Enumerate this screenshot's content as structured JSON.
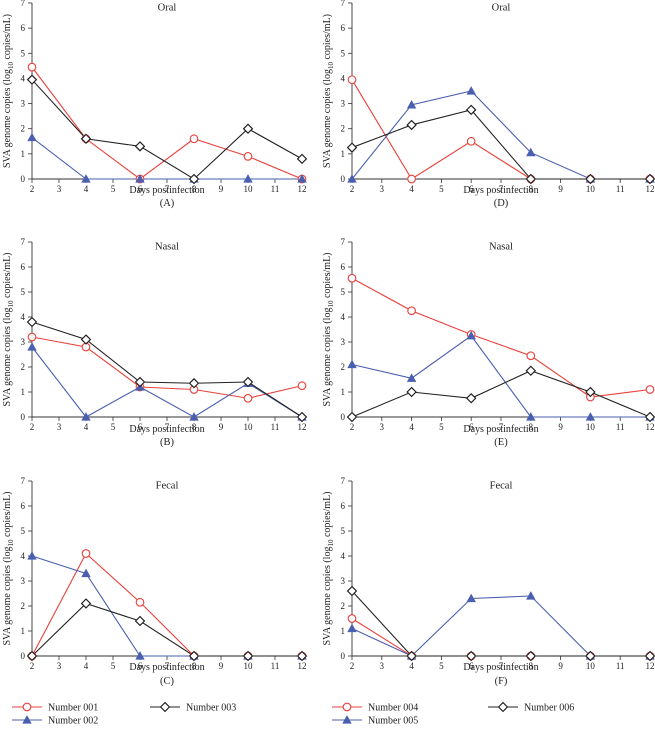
{
  "panels": [
    {
      "title": "Oral",
      "letter": "(A)",
      "xlabel": "Days postinfection",
      "ylabel_prefix": "SVA genome copies (log",
      "ylabel_sub": "10",
      "ylabel_suffix": " copies/mL)"
    },
    {
      "title": "Oral",
      "letter": "(D)",
      "xlabel": "Days postinfection",
      "ylabel_prefix": "SVA genome copies (log",
      "ylabel_sub": "10",
      "ylabel_suffix": " copies/mL)"
    },
    {
      "title": "Nasal",
      "letter": "(B)",
      "xlabel": "Days postinfection",
      "ylabel_prefix": "SVA genome copies (log",
      "ylabel_sub": "10",
      "ylabel_suffix": " copies/mL)"
    },
    {
      "title": "Nasal",
      "letter": "(E)",
      "xlabel": "Days postinfection",
      "ylabel_prefix": "SVA genome copies (log",
      "ylabel_sub": "10",
      "ylabel_suffix": " copies/mL)"
    },
    {
      "title": "Fecal",
      "letter": "(C)",
      "xlabel": "Days postinfection",
      "ylabel_prefix": "SVA genome copies (log",
      "ylabel_sub": "10",
      "ylabel_suffix": " copies/mL)"
    },
    {
      "title": "Fecal",
      "letter": "(F)",
      "xlabel": "Days postinfection",
      "ylabel_prefix": "SVA genome copies (log",
      "ylabel_sub": "10",
      "ylabel_suffix": " copies/mL)"
    }
  ],
  "legends": [
    {
      "items": [
        {
          "label": "Number 001"
        },
        {
          "label": "Number 003"
        },
        {
          "label": "Number 002"
        }
      ]
    },
    {
      "items": [
        {
          "label": "Number 004"
        },
        {
          "label": "Number 006"
        },
        {
          "label": "Number 005"
        }
      ]
    }
  ],
  "colors": {
    "red": "#e8413a",
    "blue": "#4a5fb0",
    "black": "#222222"
  },
  "chart_data": [
    {
      "type": "line",
      "title": "Oral",
      "panel": "(A)",
      "xlabel": "Days postinfection",
      "ylabel": "SVA genome copies (log10 copies/mL)",
      "x": [
        2,
        4,
        6,
        8,
        10,
        12
      ],
      "xlim": [
        2,
        12
      ],
      "ylim": [
        0,
        7
      ],
      "xticks": [
        2,
        3,
        4,
        5,
        6,
        7,
        8,
        9,
        10,
        11,
        12
      ],
      "yticks": [
        0,
        1,
        2,
        3,
        4,
        5,
        6,
        7
      ],
      "series": [
        {
          "name": "Number 001",
          "color": "red",
          "marker": "circle",
          "values": [
            4.45,
            1.6,
            0.0,
            1.6,
            0.9,
            0.0
          ]
        },
        {
          "name": "Number 002",
          "color": "blue",
          "marker": "triangle",
          "values": [
            1.65,
            0.0,
            0.0,
            0.0,
            0.0,
            0.0
          ]
        },
        {
          "name": "Number 003",
          "color": "black",
          "marker": "diamond",
          "values": [
            3.95,
            1.6,
            1.3,
            0.0,
            2.0,
            0.8
          ]
        }
      ]
    },
    {
      "type": "line",
      "title": "Oral",
      "panel": "(D)",
      "xlabel": "Days postinfection",
      "ylabel": "SVA genome copies (log10 copies/mL)",
      "x": [
        2,
        4,
        6,
        8,
        10,
        12
      ],
      "xlim": [
        2,
        12
      ],
      "ylim": [
        0,
        7
      ],
      "xticks": [
        2,
        3,
        4,
        5,
        6,
        7,
        8,
        9,
        10,
        11,
        12
      ],
      "yticks": [
        0,
        1,
        2,
        3,
        4,
        5,
        6,
        7
      ],
      "series": [
        {
          "name": "Number 004",
          "color": "red",
          "marker": "circle",
          "values": [
            3.95,
            0.0,
            1.5,
            0.0,
            0.0,
            0.0
          ]
        },
        {
          "name": "Number 005",
          "color": "blue",
          "marker": "triangle",
          "values": [
            0.0,
            2.95,
            3.5,
            1.05,
            0.0,
            0.0
          ]
        },
        {
          "name": "Number 006",
          "color": "black",
          "marker": "diamond",
          "values": [
            1.25,
            2.15,
            2.75,
            0.0,
            0.0,
            0.0
          ]
        }
      ]
    },
    {
      "type": "line",
      "title": "Nasal",
      "panel": "(B)",
      "xlabel": "Days postinfection",
      "ylabel": "SVA genome copies (log10 copies/mL)",
      "x": [
        2,
        4,
        6,
        8,
        10,
        12
      ],
      "xlim": [
        2,
        12
      ],
      "ylim": [
        0,
        7
      ],
      "xticks": [
        2,
        3,
        4,
        5,
        6,
        7,
        8,
        9,
        10,
        11,
        12
      ],
      "yticks": [
        0,
        1,
        2,
        3,
        4,
        5,
        6,
        7
      ],
      "series": [
        {
          "name": "Number 001",
          "color": "red",
          "marker": "circle",
          "values": [
            3.2,
            2.8,
            1.2,
            1.1,
            0.75,
            1.25
          ]
        },
        {
          "name": "Number 002",
          "color": "blue",
          "marker": "triangle",
          "values": [
            2.8,
            0.0,
            1.2,
            0.0,
            1.35,
            0.0
          ]
        },
        {
          "name": "Number 003",
          "color": "black",
          "marker": "diamond",
          "values": [
            3.8,
            3.1,
            1.4,
            1.35,
            1.4,
            0.0
          ]
        }
      ]
    },
    {
      "type": "line",
      "title": "Nasal",
      "panel": "(E)",
      "xlabel": "Days postinfection",
      "ylabel": "SVA genome copies (log10 copies/mL)",
      "x": [
        2,
        4,
        6,
        8,
        10,
        12
      ],
      "xlim": [
        2,
        12
      ],
      "ylim": [
        0,
        7
      ],
      "xticks": [
        2,
        3,
        4,
        5,
        6,
        7,
        8,
        9,
        10,
        11,
        12
      ],
      "yticks": [
        0,
        1,
        2,
        3,
        4,
        5,
        6,
        7
      ],
      "series": [
        {
          "name": "Number 004",
          "color": "red",
          "marker": "circle",
          "values": [
            5.55,
            4.25,
            3.3,
            2.45,
            0.8,
            1.1
          ]
        },
        {
          "name": "Number 005",
          "color": "blue",
          "marker": "triangle",
          "values": [
            2.1,
            1.55,
            3.25,
            0.0,
            0.0,
            0.0
          ]
        },
        {
          "name": "Number 006",
          "color": "black",
          "marker": "diamond",
          "values": [
            0.0,
            1.0,
            0.75,
            1.85,
            1.0,
            0.0
          ]
        }
      ]
    },
    {
      "type": "line",
      "title": "Fecal",
      "panel": "(C)",
      "xlabel": "Days postinfection",
      "ylabel": "SVA genome copies (log10 copies/mL)",
      "x": [
        2,
        4,
        6,
        8,
        10,
        12
      ],
      "xlim": [
        2,
        12
      ],
      "ylim": [
        0,
        7
      ],
      "xticks": [
        2,
        3,
        4,
        5,
        6,
        7,
        8,
        9,
        10,
        11,
        12
      ],
      "yticks": [
        0,
        1,
        2,
        3,
        4,
        5,
        6,
        7
      ],
      "series": [
        {
          "name": "Number 001",
          "color": "red",
          "marker": "circle",
          "values": [
            0.0,
            4.1,
            2.15,
            0.0,
            0.0,
            0.0
          ]
        },
        {
          "name": "Number 002",
          "color": "blue",
          "marker": "triangle",
          "values": [
            4.0,
            3.3,
            0.0,
            0.0,
            0.0,
            0.0
          ]
        },
        {
          "name": "Number 003",
          "color": "black",
          "marker": "diamond",
          "values": [
            0.0,
            2.1,
            1.4,
            0.0,
            0.0,
            0.0
          ]
        }
      ]
    },
    {
      "type": "line",
      "title": "Fecal",
      "panel": "(F)",
      "xlabel": "Days postinfection",
      "ylabel": "SVA genome copies (log10 copies/mL)",
      "x": [
        2,
        4,
        6,
        8,
        10,
        12
      ],
      "xlim": [
        2,
        12
      ],
      "ylim": [
        0,
        7
      ],
      "xticks": [
        2,
        3,
        4,
        5,
        6,
        7,
        8,
        9,
        10,
        11,
        12
      ],
      "yticks": [
        0,
        1,
        2,
        3,
        4,
        5,
        6,
        7
      ],
      "series": [
        {
          "name": "Number 004",
          "color": "red",
          "marker": "circle",
          "values": [
            1.5,
            0.0,
            0.0,
            0.0,
            0.0,
            0.0
          ]
        },
        {
          "name": "Number 005",
          "color": "blue",
          "marker": "triangle",
          "values": [
            1.1,
            0.0,
            2.3,
            2.4,
            0.0,
            0.0
          ]
        },
        {
          "name": "Number 006",
          "color": "black",
          "marker": "diamond",
          "values": [
            2.6,
            0.0,
            0.0,
            0.0,
            0.0,
            0.0
          ]
        }
      ]
    }
  ]
}
